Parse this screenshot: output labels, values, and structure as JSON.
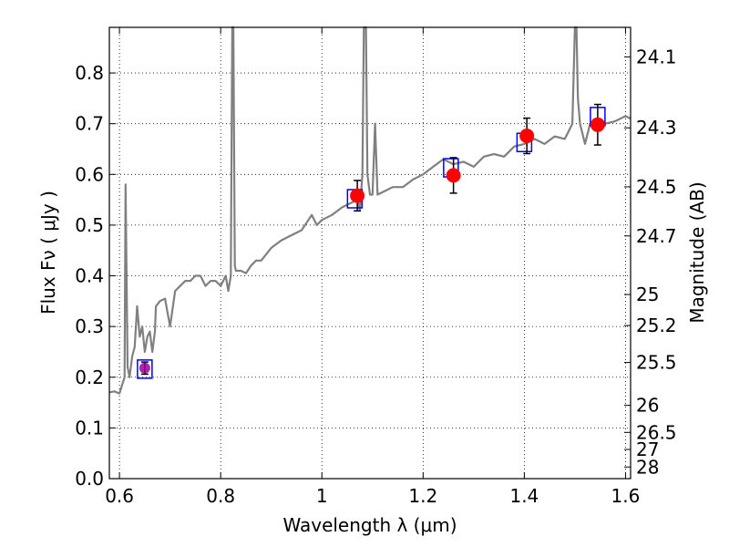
{
  "chart_data": {
    "type": "scatter",
    "xlabel": "Wavelength  λ (μm)",
    "ylabel": "Flux  Fν  ( μJy )",
    "y2label": "Magnitude (AB)",
    "xlim": [
      0.58,
      1.61
    ],
    "ylim": [
      0.0,
      0.89
    ],
    "x_ticks": [
      0.6,
      0.8,
      1.0,
      1.2,
      1.4,
      1.6
    ],
    "x_tick_labels": [
      "0.6",
      "0.8",
      "1",
      "1.2",
      "1.4",
      "1.6"
    ],
    "y_ticks": [
      0.0,
      0.1,
      0.2,
      0.3,
      0.4,
      0.5,
      0.6,
      0.7,
      0.8
    ],
    "y_tick_labels": [
      "0.0",
      "0.1",
      "0.2",
      "0.3",
      "0.4",
      "0.5",
      "0.6",
      "0.7",
      "0.8"
    ],
    "mag_ticks": [
      "24.1",
      "24.3",
      "24.5",
      "24.7",
      "25",
      "25.2",
      "25.5",
      "26",
      "26.5",
      "27",
      "28"
    ],
    "grid": true,
    "colors": {
      "spectrum": "#808080",
      "observed": "#ff0000",
      "observed_faint": "#990099",
      "model_box": "#0000ff",
      "errorbar": "#000000"
    },
    "observed_points": [
      {
        "x": 0.65,
        "y": 0.218,
        "err": 0.012
      },
      {
        "x": 1.07,
        "y": 0.558,
        "err": 0.03
      },
      {
        "x": 1.26,
        "y": 0.598,
        "err": 0.035
      },
      {
        "x": 1.405,
        "y": 0.676,
        "err": 0.035
      },
      {
        "x": 1.545,
        "y": 0.698,
        "err": 0.04
      }
    ],
    "model_points": [
      {
        "x": 0.65,
        "y": 0.216
      },
      {
        "x": 1.065,
        "y": 0.552
      },
      {
        "x": 1.255,
        "y": 0.613
      },
      {
        "x": 1.4,
        "y": 0.663
      },
      {
        "x": 1.545,
        "y": 0.714
      }
    ],
    "spectrum": {
      "x": [
        0.58,
        0.59,
        0.6,
        0.61,
        0.612,
        0.616,
        0.62,
        0.625,
        0.63,
        0.635,
        0.64,
        0.645,
        0.65,
        0.655,
        0.66,
        0.665,
        0.67,
        0.672,
        0.68,
        0.69,
        0.7,
        0.71,
        0.72,
        0.73,
        0.74,
        0.75,
        0.76,
        0.77,
        0.78,
        0.79,
        0.8,
        0.81,
        0.815,
        0.82,
        0.823,
        0.825,
        0.828,
        0.83,
        0.84,
        0.85,
        0.86,
        0.87,
        0.88,
        0.9,
        0.92,
        0.94,
        0.96,
        0.98,
        0.99,
        1.0,
        1.02,
        1.04,
        1.06,
        1.07,
        1.075,
        1.08,
        1.083,
        1.087,
        1.09,
        1.095,
        1.1,
        1.105,
        1.11,
        1.12,
        1.14,
        1.16,
        1.18,
        1.2,
        1.22,
        1.24,
        1.26,
        1.28,
        1.3,
        1.32,
        1.34,
        1.36,
        1.38,
        1.4,
        1.42,
        1.44,
        1.46,
        1.48,
        1.49,
        1.495,
        1.5,
        1.503,
        1.506,
        1.51,
        1.52,
        1.53,
        1.54,
        1.56,
        1.58,
        1.6,
        1.61
      ],
      "y": [
        0.17,
        0.172,
        0.168,
        0.2,
        0.58,
        0.22,
        0.2,
        0.24,
        0.26,
        0.34,
        0.28,
        0.3,
        0.25,
        0.28,
        0.29,
        0.25,
        0.29,
        0.34,
        0.35,
        0.355,
        0.3,
        0.37,
        0.38,
        0.39,
        0.39,
        0.4,
        0.4,
        0.38,
        0.39,
        0.39,
        0.38,
        0.4,
        0.37,
        0.4,
        0.9,
        0.9,
        0.42,
        0.41,
        0.41,
        0.405,
        0.42,
        0.43,
        0.43,
        0.455,
        0.47,
        0.48,
        0.49,
        0.52,
        0.5,
        0.51,
        0.52,
        0.535,
        0.545,
        0.55,
        0.53,
        0.6,
        0.9,
        0.9,
        0.6,
        0.56,
        0.56,
        0.7,
        0.56,
        0.565,
        0.575,
        0.575,
        0.59,
        0.6,
        0.615,
        0.63,
        0.62,
        0.625,
        0.615,
        0.635,
        0.64,
        0.635,
        0.655,
        0.66,
        0.67,
        0.66,
        0.675,
        0.67,
        0.69,
        0.7,
        0.9,
        0.9,
        0.75,
        0.7,
        0.66,
        0.7,
        0.7,
        0.7,
        0.705,
        0.715,
        0.71
      ]
    }
  }
}
